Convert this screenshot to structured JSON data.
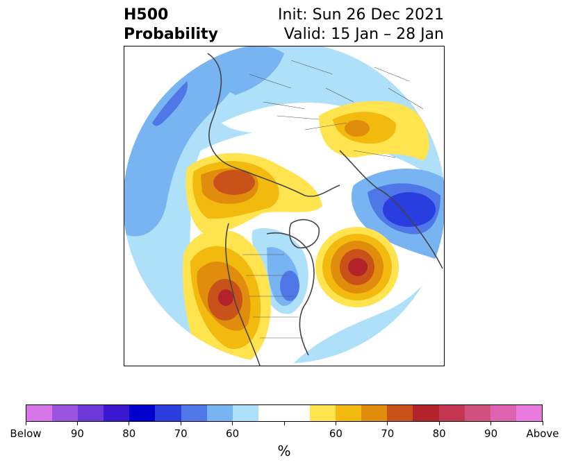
{
  "title": {
    "left_line1": "H500",
    "left_line2": "Probability",
    "right_line1": "Init: Sun 26 Dec 2021",
    "right_line2": "Valid: 15 Jan – 28 Jan"
  },
  "colorbar": {
    "colors": [
      "#d676e8",
      "#9c54e0",
      "#6c38d8",
      "#3a18cf",
      "#0000cc",
      "#2a3ee0",
      "#4f77e8",
      "#78b3f2",
      "#aee0fa",
      "#ffffff",
      "#ffffff",
      "#ffe44f",
      "#f2b90e",
      "#e08c0c",
      "#c9521b",
      "#b2232a",
      "#c43651",
      "#d0507e",
      "#dd62b0",
      "#e77be0"
    ],
    "tick_labels": [
      "Below",
      "90",
      "80",
      "70",
      "60",
      "",
      "60",
      "70",
      "80",
      "90",
      "Above"
    ],
    "unit": "%"
  },
  "map": {
    "palette": {
      "blue_light": "#aee0fa",
      "blue_mid": "#78b3f2",
      "blue_strong": "#4f77e8",
      "blue_deep": "#2a3ee0",
      "orange_1": "#ffe44f",
      "orange_2": "#f2b90e",
      "orange_3": "#e08c0c",
      "orange_4": "#c9521b",
      "red": "#b2232a",
      "coast": "#444444"
    }
  }
}
